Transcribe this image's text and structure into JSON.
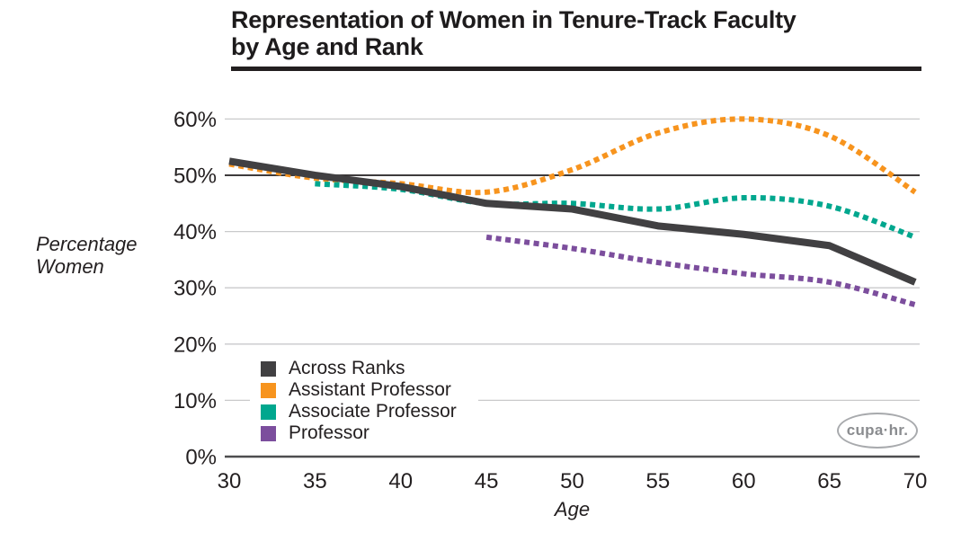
{
  "header": {
    "title_lines": [
      "Representation of Women in Tenure-Track Faculty",
      "by Age and Rank"
    ]
  },
  "logo": {
    "text": "cupa·hr."
  },
  "style_colors": {
    "grid": "#C9CACB",
    "reference_line": "#231F20",
    "axis_baseline": "#4D4D4F",
    "text": "#231F20",
    "logo_gray": "#A8AAAD"
  },
  "chart_data": {
    "type": "line",
    "title": "Representation of Women in Tenure-Track Faculty by Age and Rank",
    "xlabel": "Age",
    "ylabel": "Percentage Women",
    "x": [
      30,
      35,
      40,
      45,
      50,
      55,
      60,
      65,
      70
    ],
    "xlim": [
      30,
      70
    ],
    "ylim": [
      0,
      60
    ],
    "ytick_values": [
      0,
      10,
      20,
      30,
      40,
      50,
      60
    ],
    "ytick_labels": [
      "0%",
      "10%",
      "20%",
      "30%",
      "40%",
      "50%",
      "60%"
    ],
    "reference_line_y": 50,
    "grid": "horizontal",
    "legend_position": "inside-bottom-left",
    "series": [
      {
        "name": "Across Ranks",
        "color": "#414042",
        "line_style": "solid",
        "values": [
          52.5,
          50,
          48,
          45,
          44,
          41,
          39.5,
          37.5,
          31
        ]
      },
      {
        "name": "Assistant Professor",
        "color": "#F7941E",
        "line_style": "dotted",
        "values": [
          52,
          49.5,
          48.5,
          47,
          51,
          57.5,
          60,
          57,
          47
        ]
      },
      {
        "name": "Associate Professor",
        "color": "#00A78E",
        "line_style": "dotted",
        "values": [
          null,
          48.5,
          47.5,
          45,
          45,
          44,
          46,
          44.5,
          39
        ]
      },
      {
        "name": "Professor",
        "color": "#7C4E9D",
        "line_style": "dotted",
        "values": [
          null,
          null,
          null,
          39,
          37,
          34.5,
          32.5,
          31,
          27
        ]
      }
    ]
  }
}
